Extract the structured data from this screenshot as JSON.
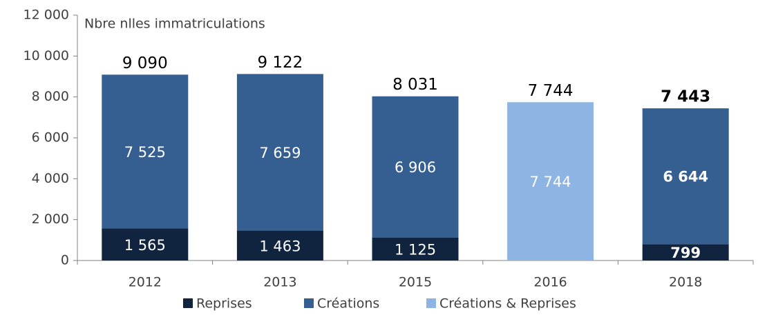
{
  "chart_data": {
    "type": "stacked_bar",
    "y_label": "Nbre nlles immatriculations",
    "categories": [
      "2012",
      "2013",
      "2015",
      "2016",
      "2018"
    ],
    "series": [
      {
        "name": "Reprises",
        "color": "#10243f",
        "values": [
          1565,
          1463,
          1125,
          null,
          799
        ],
        "value_labels": [
          "1 565",
          "1 463",
          "1 125",
          null,
          "799"
        ]
      },
      {
        "name": "Créations",
        "color": "#355f91",
        "values": [
          7525,
          7659,
          6906,
          null,
          6644
        ],
        "value_labels": [
          "7 525",
          "7 659",
          "6 906",
          null,
          "6 644"
        ]
      },
      {
        "name": "Créations & Reprises",
        "color": "#8eb4e3",
        "values": [
          null,
          null,
          null,
          7744,
          null
        ],
        "value_labels": [
          null,
          null,
          null,
          "7 744",
          null
        ]
      }
    ],
    "totals": [
      9090,
      9122,
      8031,
      7744,
      7443
    ],
    "total_labels": [
      "9 090",
      "9 122",
      "8 031",
      "7 744",
      "7 443"
    ],
    "ylim": [
      0,
      12000
    ],
    "yticks": [
      0,
      {
        "value": 2000,
        "label": "2 000"
      },
      {
        "value": 4000,
        "label": "4 000"
      },
      {
        "value": 6000,
        "label": "6 000"
      },
      {
        "value": 8000,
        "label": "8 000"
      },
      {
        "value": 10000,
        "label": "10 000"
      },
      {
        "value": 12000,
        "label": "12 000"
      }
    ],
    "grid": false,
    "legend": "bottom"
  }
}
